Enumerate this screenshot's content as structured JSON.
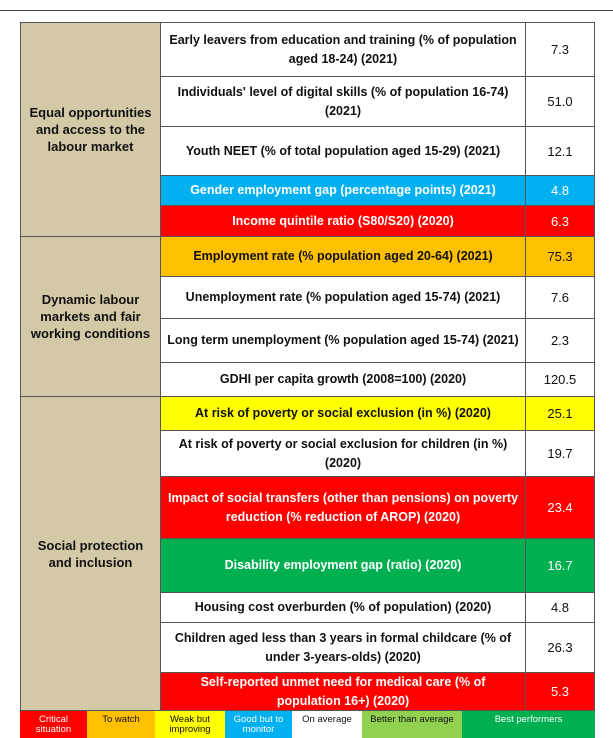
{
  "groups": [
    {
      "label": "Equal opportunities and access to the labour market",
      "rows": [
        {
          "indicator": "Early leavers from education and training (% of population aged 18-24) (2021)",
          "value": "7.3",
          "fill": "#ffffff"
        },
        {
          "indicator": "Individuals' level of digital skills (% of population 16-74)(2021)",
          "value": "51.0",
          "fill": "#ffffff"
        },
        {
          "indicator": "Youth NEET (% of total population aged 15-29) (2021)",
          "value": "12.1",
          "fill": "#ffffff"
        },
        {
          "indicator": "Gender employment gap (percentage points) (2021)",
          "value": "4.8",
          "fill": "#00b0f0"
        },
        {
          "indicator": "Income quintile ratio (S80/S20) (2020)",
          "value": "6.3",
          "fill": "#ff0000"
        }
      ]
    },
    {
      "label": "Dynamic labour markets and fair working conditions",
      "rows": [
        {
          "indicator": "Employment rate (% population aged 20-64) (2021)",
          "value": "75.3",
          "fill": "#ffc000"
        },
        {
          "indicator": "Unemployment rate (% population aged 15-74) (2021)",
          "value": "7.6",
          "fill": "#ffffff"
        },
        {
          "indicator": "Long term unemployment (% population aged 15-74) (2021)",
          "value": "2.3",
          "fill": "#ffffff"
        },
        {
          "indicator": "GDHI per capita growth (2008=100) (2020)",
          "value": "120.5",
          "fill": "#ffffff"
        }
      ]
    },
    {
      "label": "Social protection and inclusion",
      "rows": [
        {
          "indicator": "At risk of poverty or social exclusion (in %) (2020)",
          "value": "25.1",
          "fill": "#ffff00"
        },
        {
          "indicator": "At risk of poverty or social exclusion for children (in %) (2020)",
          "value": "19.7",
          "fill": "#ffffff"
        },
        {
          "indicator": "Impact of social transfers (other than pensions) on poverty reduction (% reduction of AROP) (2020)",
          "value": "23.4",
          "fill": "#ff0000"
        },
        {
          "indicator": "Disability employment gap (ratio) (2020)",
          "value": "16.7",
          "fill": "#00b050"
        },
        {
          "indicator": "Housing cost overburden (% of population) (2020)",
          "value": "4.8",
          "fill": "#ffffff"
        },
        {
          "indicator": "Children aged less than 3 years in formal childcare (% of under 3-years-olds) (2020)",
          "value": "26.3",
          "fill": "#ffffff"
        },
        {
          "indicator": "Self-reported unmet need for medical care (% of population 16+) (2020)",
          "value": "5.3",
          "fill": "#ff0000"
        }
      ]
    }
  ],
  "legend": [
    {
      "label": "Critical situation",
      "fill": "#ff0000"
    },
    {
      "label": "To watch",
      "fill": "#ffc000"
    },
    {
      "label": "Weak but improving",
      "fill": "#ffff00"
    },
    {
      "label": "Good but to monitor",
      "fill": "#00b0f0"
    },
    {
      "label": "On average",
      "fill": "#ffffff"
    },
    {
      "label": "Better than average",
      "fill": "#92d050"
    },
    {
      "label": "Best performers",
      "fill": "#00b050"
    }
  ]
}
